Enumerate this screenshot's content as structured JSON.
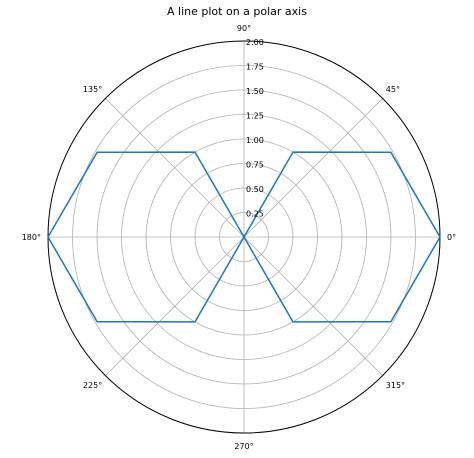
{
  "chart_data": {
    "type": "line",
    "projection": "polar",
    "title": "A line plot on a polar axis",
    "theta_tick_labels": [
      "0°",
      "45°",
      "90°",
      "135°",
      "180°",
      "225°",
      "270°",
      "315°"
    ],
    "r_tick_labels": [
      "0.25",
      "0.50",
      "0.75",
      "1.00",
      "1.25",
      "1.50",
      "1.75",
      "2.00"
    ],
    "r_ticks": [
      0.25,
      0.5,
      0.75,
      1.0,
      1.25,
      1.5,
      1.75,
      2.0
    ],
    "rlim": [
      0,
      2
    ],
    "grid": true,
    "series": [
      {
        "color": "#1f77b4",
        "points": [
          {
            "theta_deg": 0,
            "r": 2.0
          },
          {
            "theta_deg": 30,
            "r": 1.73
          },
          {
            "theta_deg": 60,
            "r": 1.0
          },
          {
            "theta_deg": 90,
            "r": 0.0
          },
          {
            "theta_deg": 120,
            "r": 1.0
          },
          {
            "theta_deg": 150,
            "r": 1.73
          },
          {
            "theta_deg": 180,
            "r": 2.0
          },
          {
            "theta_deg": 210,
            "r": 1.73
          },
          {
            "theta_deg": 240,
            "r": 1.0
          },
          {
            "theta_deg": 270,
            "r": 0.0
          },
          {
            "theta_deg": 300,
            "r": 1.0
          },
          {
            "theta_deg": 330,
            "r": 1.73
          },
          {
            "theta_deg": 360,
            "r": 2.0
          }
        ]
      }
    ]
  }
}
